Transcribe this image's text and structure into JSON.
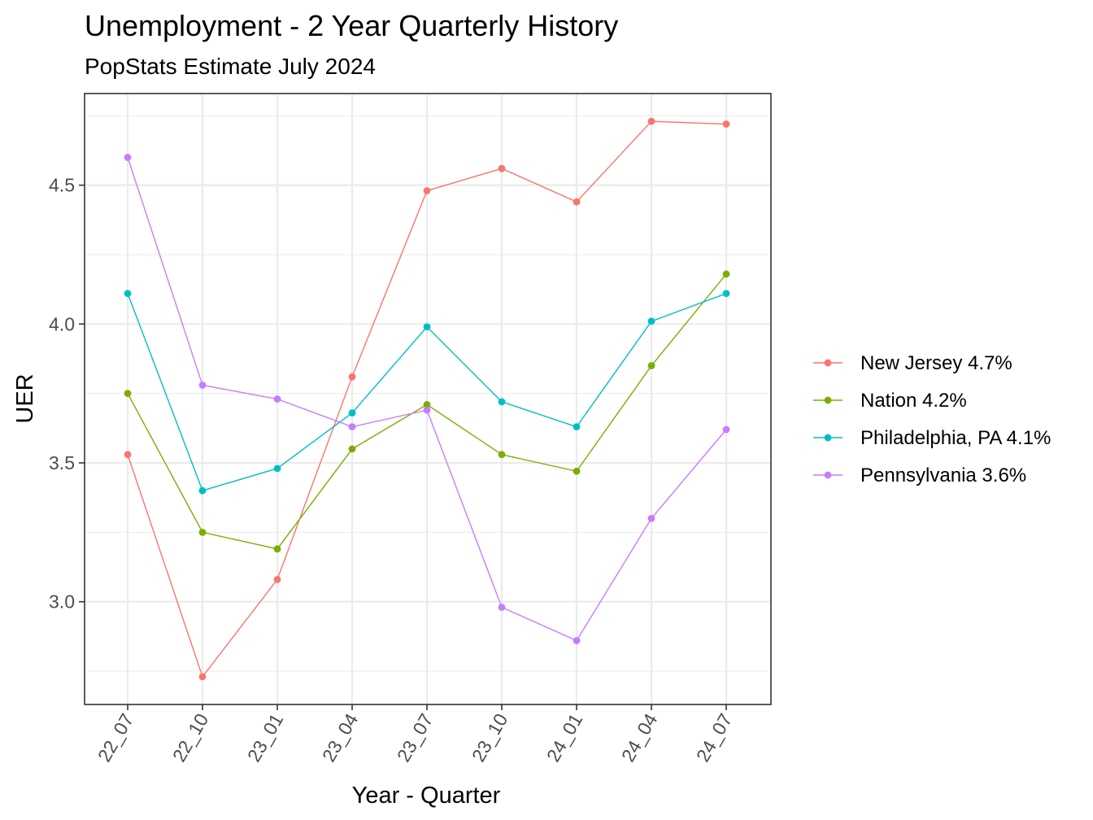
{
  "chart_data": {
    "type": "line",
    "title": "Unemployment - 2 Year Quarterly History",
    "subtitle": "PopStats Estimate July 2024",
    "xlabel": "Year - Quarter",
    "ylabel": "UER",
    "categories": [
      "22_07",
      "22_10",
      "23_01",
      "23_04",
      "23_07",
      "23_10",
      "24_01",
      "24_04",
      "24_07"
    ],
    "ylim": [
      2.63,
      4.83
    ],
    "yticks": [
      3.0,
      3.5,
      4.0,
      4.5
    ],
    "ytick_labels": [
      "3.0",
      "3.5",
      "4.0",
      "4.5"
    ],
    "grid": true,
    "legend_position": "right",
    "series": [
      {
        "name": "New Jersey 4.7%",
        "color": "#F8766D",
        "values": [
          3.53,
          2.73,
          3.08,
          3.81,
          4.48,
          4.56,
          4.44,
          4.73,
          4.72
        ]
      },
      {
        "name": "Nation 4.2%",
        "color": "#7CAE00",
        "values": [
          3.75,
          3.25,
          3.19,
          3.55,
          3.71,
          3.53,
          3.47,
          3.85,
          4.18
        ]
      },
      {
        "name": "Philadelphia, PA 4.1%",
        "color": "#00BFC4",
        "values": [
          4.11,
          3.4,
          3.48,
          3.68,
          3.99,
          3.72,
          3.63,
          4.01,
          4.11
        ]
      },
      {
        "name": "Pennsylvania 3.6%",
        "color": "#C77CFF",
        "values": [
          4.6,
          3.78,
          3.73,
          3.63,
          3.69,
          2.98,
          2.86,
          3.3,
          3.62
        ]
      }
    ]
  }
}
